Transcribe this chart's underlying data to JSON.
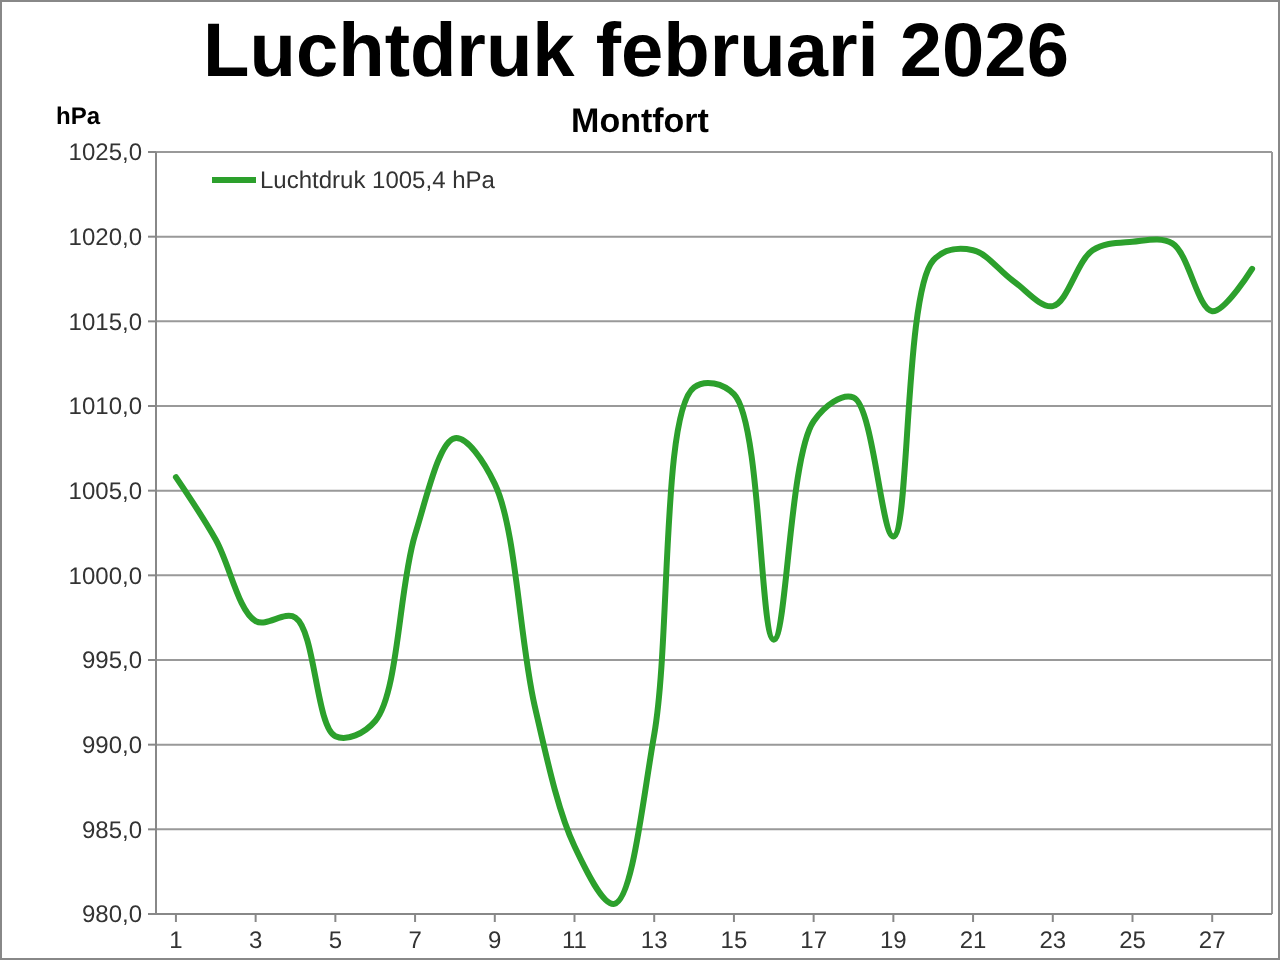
{
  "chart_data": {
    "type": "line",
    "title": "Luchtdruk februari 2026",
    "subtitle": "Montfort",
    "ylabel": "hPa",
    "x": [
      1,
      2,
      3,
      4,
      5,
      6,
      7,
      8,
      9,
      10,
      11,
      12,
      13,
      14,
      15,
      16,
      17,
      18,
      19,
      20,
      21,
      22,
      23,
      24,
      25,
      26,
      27,
      28
    ],
    "xlim": [
      0.5,
      28.5
    ],
    "xticks": [
      1,
      3,
      5,
      7,
      9,
      11,
      13,
      15,
      17,
      19,
      21,
      23,
      25,
      27
    ],
    "series": [
      {
        "name": "Luchtdruk 1005,4 hPa",
        "color": "#2ca02c",
        "values": [
          1005.8,
          1002.1,
          997.3,
          997.5,
          990.5,
          991.4,
          1002.4,
          1008.1,
          1005.4,
          992.3,
          984.0,
          980.6,
          990.6,
          1011.1,
          1010.7,
          996.2,
          1009.1,
          1010.5,
          1002.3,
          1018.6,
          1019.2,
          1017.4,
          1015.9,
          1019.2,
          1019.7,
          1019.6,
          1015.6,
          1018.1
        ]
      }
    ],
    "ylim": [
      980,
      1025
    ],
    "yticks": [
      {
        "value": 980,
        "label": "980,0"
      },
      {
        "value": 985,
        "label": "985,0"
      },
      {
        "value": 990,
        "label": "990,0"
      },
      {
        "value": 995,
        "label": "995,0"
      },
      {
        "value": 1000,
        "label": "1000,0"
      },
      {
        "value": 1005,
        "label": "1005,0"
      },
      {
        "value": 1010,
        "label": "1010,0"
      },
      {
        "value": 1015,
        "label": "1015,0"
      },
      {
        "value": 1020,
        "label": "1020,0"
      },
      {
        "value": 1025,
        "label": "1025,0"
      }
    ],
    "grid": "y",
    "legend": "top left",
    "marker": "none",
    "line_style": "solid"
  }
}
